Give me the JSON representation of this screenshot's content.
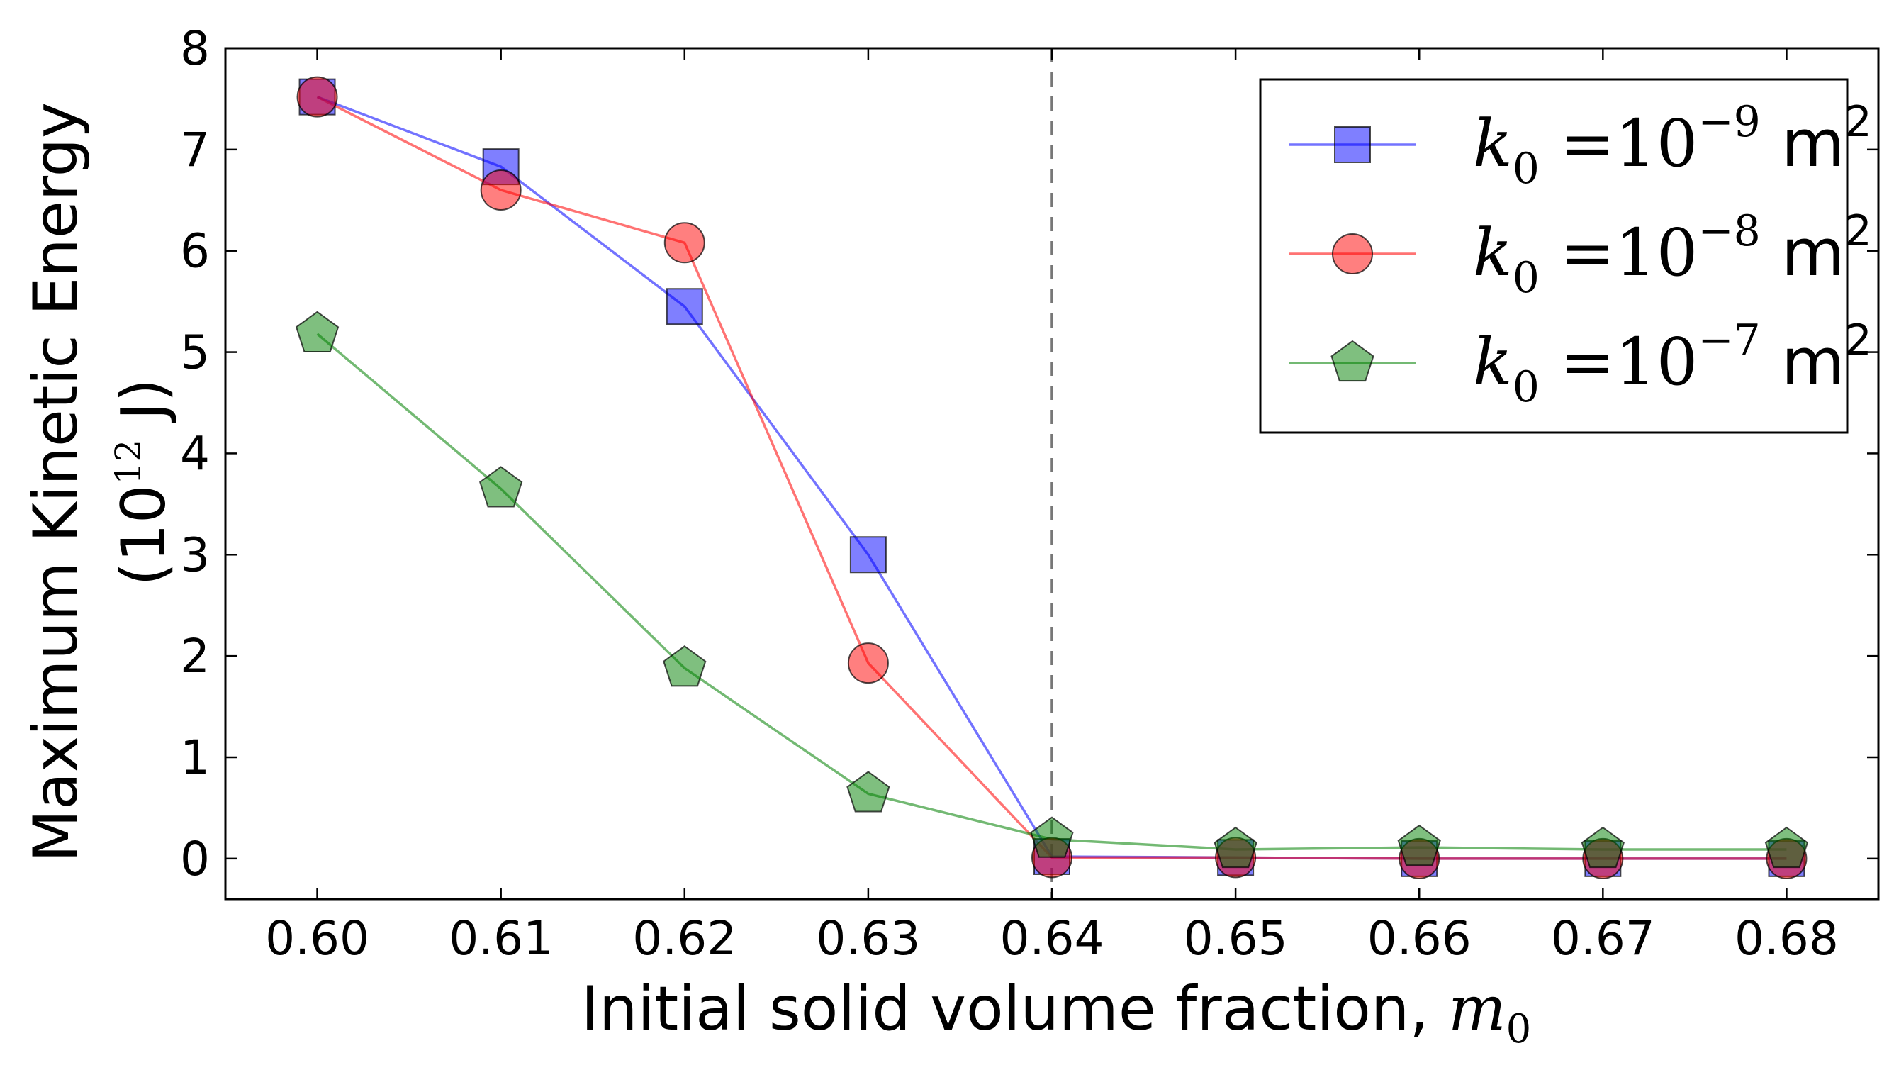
{
  "chart_data": {
    "type": "line",
    "xlabel": "Initial solid volume fraction, ",
    "xlabel_math": "m",
    "xlabel_math_sub": "0",
    "ylabel_line1": "Maximum Kinetic Energy",
    "ylabel_line2_open": "(10",
    "ylabel_line2_sup": "12",
    "ylabel_line2_close": " J)",
    "x": [
      0.6,
      0.61,
      0.62,
      0.63,
      0.64,
      0.65,
      0.66,
      0.67,
      0.68
    ],
    "x_tick_labels": [
      "0.60",
      "0.61",
      "0.62",
      "0.63",
      "0.64",
      "0.65",
      "0.66",
      "0.67",
      "0.68"
    ],
    "xlim": [
      0.595,
      0.685
    ],
    "ylim": [
      -0.4,
      8
    ],
    "y_ticks": [
      0,
      1,
      2,
      3,
      4,
      5,
      6,
      7,
      8
    ],
    "y_tick_labels": [
      "0",
      "1",
      "2",
      "3",
      "4",
      "5",
      "6",
      "7",
      "8"
    ],
    "grid": false,
    "legend_position": "top-right",
    "vertical_line": {
      "x": 0.64,
      "style": "dashed",
      "color": "#777777"
    },
    "series": [
      {
        "name": "k0 = 10^-9 m^2",
        "legend_k": "k",
        "legend_sub": "0",
        "legend_eq": " =10",
        "legend_exp": "−9",
        "legend_unit": " m",
        "legend_unit_sup": "2",
        "color": "#0000ff",
        "marker": "square",
        "values": [
          7.52,
          6.83,
          5.45,
          3.0,
          0.02,
          0.01,
          0.0,
          0.0,
          0.0
        ]
      },
      {
        "name": "k0 = 10^-8 m^2",
        "legend_k": "k",
        "legend_sub": "0",
        "legend_eq": " =10",
        "legend_exp": "−8",
        "legend_unit": " m",
        "legend_unit_sup": "2",
        "color": "#ff0000",
        "marker": "circle",
        "values": [
          7.52,
          6.6,
          6.08,
          1.93,
          0.01,
          0.01,
          0.0,
          0.0,
          0.0
        ]
      },
      {
        "name": "k0 = 10^-7 m^2",
        "legend_k": "k",
        "legend_sub": "0",
        "legend_eq": " =10",
        "legend_exp": "−7",
        "legend_unit": " m",
        "legend_unit_sup": "2",
        "color": "#008000",
        "marker": "pentagon",
        "values": [
          5.18,
          3.65,
          1.88,
          0.64,
          0.19,
          0.09,
          0.11,
          0.09,
          0.09
        ]
      }
    ]
  }
}
